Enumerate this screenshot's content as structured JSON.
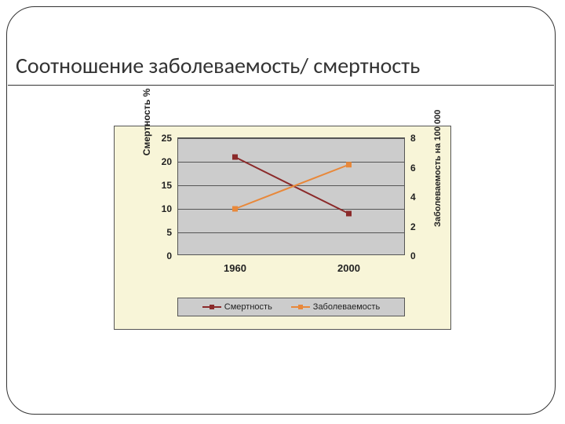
{
  "title": "Соотношение заболеваемость/ смертность",
  "chart": {
    "type": "line",
    "background_color": "#f8f5d8",
    "plot_background": "#cccccc",
    "plot_border": "#555555",
    "grid_color": "#555555",
    "x_categories": [
      "1960",
      "2000"
    ],
    "left_axis": {
      "label": "Смертность %",
      "min": 0,
      "max": 25,
      "step": 5,
      "ticks": [
        "0",
        "5",
        "10",
        "15",
        "20",
        "25"
      ]
    },
    "right_axis": {
      "label": "Заболеваемость на 100 000",
      "min": 0,
      "max": 8,
      "step": 2,
      "ticks": [
        "0",
        "2",
        "4",
        "6",
        "8"
      ]
    },
    "series": [
      {
        "name": "Смертность",
        "axis": "left",
        "color": "#8b2a2a",
        "marker": "square",
        "marker_size": 7,
        "line_width": 2,
        "values": [
          21,
          9
        ]
      },
      {
        "name": "Заболеваемость",
        "axis": "right",
        "color": "#e8883a",
        "marker": "square",
        "marker_size": 7,
        "line_width": 2,
        "values": [
          3.2,
          6.2
        ]
      }
    ],
    "legend": {
      "items": [
        "Смертность",
        "Заболеваемость"
      ]
    },
    "label_fontsize": 12,
    "tick_fontsize": 12,
    "tick_fontweight": "bold"
  }
}
